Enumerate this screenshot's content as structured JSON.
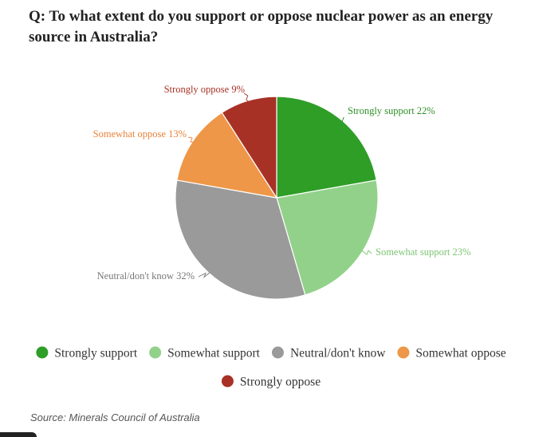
{
  "chart_data": {
    "type": "pie",
    "title": "Q: To what extent do you support or oppose nuclear power as an energy source in Australia?",
    "slices": [
      {
        "label": "Strongly support",
        "value": 22,
        "display": "Strongly support 22%",
        "color": "#2e9e27"
      },
      {
        "label": "Somewhat support",
        "value": 23,
        "display": "Somewhat support 23%",
        "color": "#92d18a"
      },
      {
        "label": "Neutral/don't know",
        "value": 32,
        "display": "Neutral/don't know 32%",
        "color": "#9a9a9a"
      },
      {
        "label": "Somewhat oppose",
        "value": 13,
        "display": "Somewhat oppose 13%",
        "color": "#ee9748"
      },
      {
        "label": "Strongly oppose",
        "value": 9,
        "display": "Strongly oppose 9%",
        "color": "#a83125"
      }
    ],
    "label_colors": {
      "Strongly support": "#2e8f27",
      "Somewhat support": "#7cc573",
      "Neutral/don't know": "#777777",
      "Somewhat oppose": "#e8823a",
      "Strongly oppose": "#a83125"
    },
    "legend_placement": "bottom",
    "source": "Source: Minerals Council of Australia"
  }
}
